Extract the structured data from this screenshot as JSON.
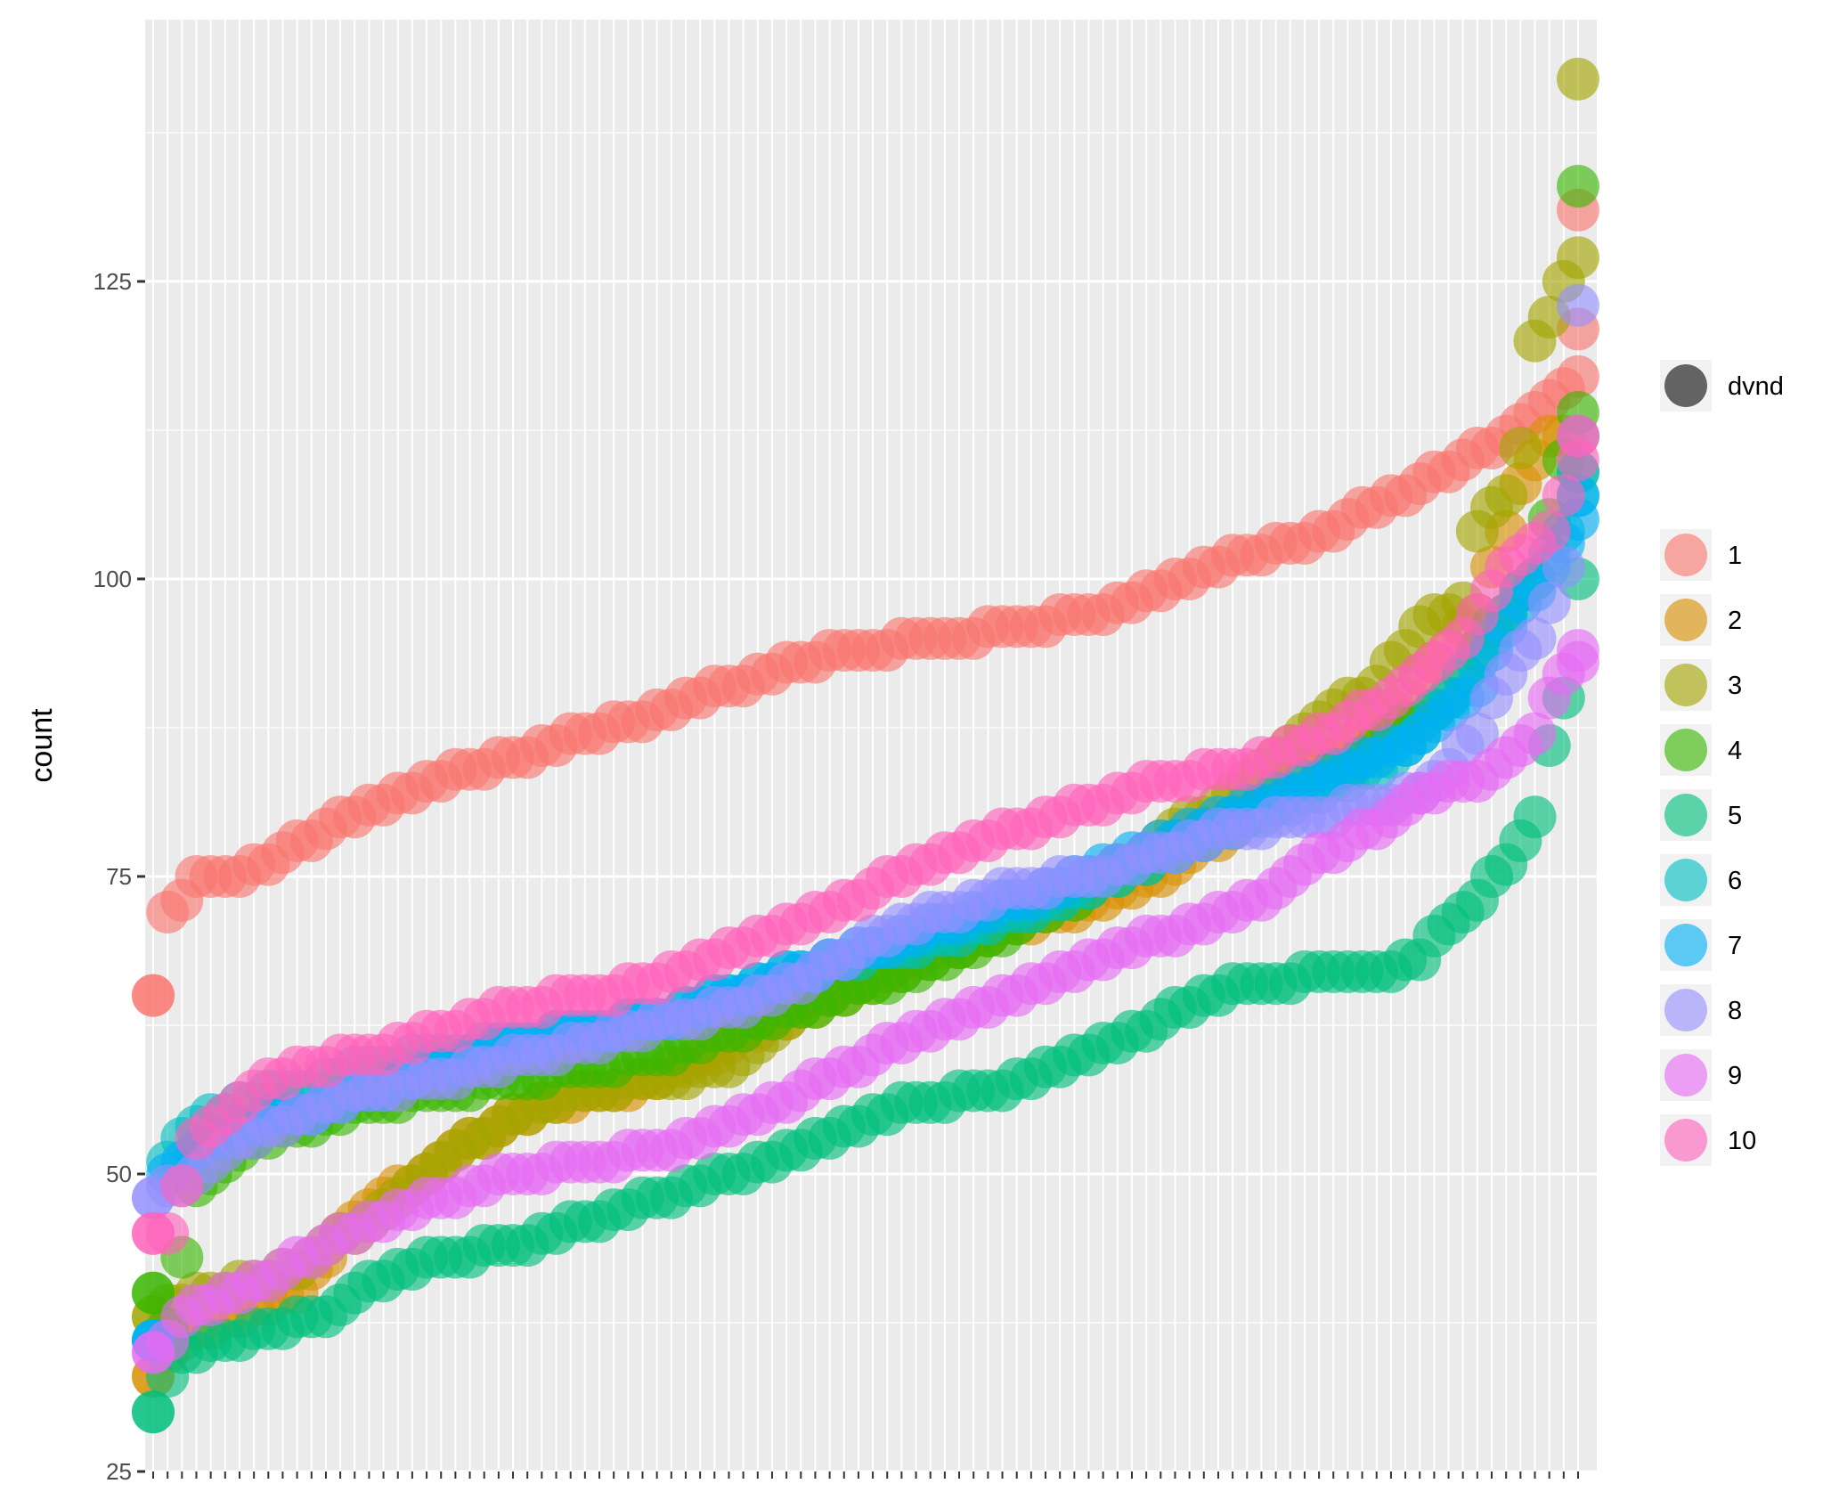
{
  "chart_data": {
    "type": "scatter",
    "title": "",
    "xlabel": "",
    "ylabel": "count",
    "ylim": [
      25,
      147
    ],
    "y_ticks": [
      25,
      50,
      75,
      100,
      125
    ],
    "x_count": 100,
    "x_tick_labels": "none",
    "point_alpha": 0.62,
    "grid": true,
    "background": "#EBEBEB",
    "legend_position": "right",
    "size_legend": {
      "label": "dvnd",
      "color": "#636363"
    },
    "series": [
      {
        "name": "1",
        "color": "#F8766D",
        "anchors": [
          [
            0,
            65
          ],
          [
            1,
            72
          ],
          [
            3,
            74.5
          ],
          [
            8,
            76
          ],
          [
            13,
            80
          ],
          [
            18,
            82
          ],
          [
            22,
            84
          ],
          [
            25,
            85
          ],
          [
            30,
            87
          ],
          [
            33,
            88
          ],
          [
            40,
            91
          ],
          [
            45,
            93
          ],
          [
            48,
            94
          ],
          [
            55,
            95
          ],
          [
            60,
            96
          ],
          [
            65,
            97
          ],
          [
            70,
            99
          ],
          [
            76,
            102
          ],
          [
            80,
            103
          ],
          [
            83,
            105
          ],
          [
            87,
            107
          ],
          [
            91,
            110
          ],
          [
            94,
            112
          ],
          [
            97,
            115
          ],
          [
            99,
            117
          ],
          [
            100,
            121
          ],
          [
            100,
            131
          ]
        ]
      },
      {
        "name": "2",
        "color": "#D89000",
        "anchors": [
          [
            0,
            33
          ],
          [
            2,
            36
          ],
          [
            10,
            40
          ],
          [
            14,
            46
          ],
          [
            20,
            51
          ],
          [
            25,
            55
          ],
          [
            35,
            58
          ],
          [
            45,
            64
          ],
          [
            55,
            69
          ],
          [
            63,
            72
          ],
          [
            70,
            75
          ],
          [
            76,
            80
          ],
          [
            80,
            84
          ],
          [
            83,
            86
          ],
          [
            86,
            89
          ],
          [
            89,
            93
          ],
          [
            92,
            97
          ],
          [
            94,
            104
          ],
          [
            95,
            108
          ],
          [
            96,
            110
          ],
          [
            97,
            112
          ]
        ]
      },
      {
        "name": "3",
        "color": "#A3A500",
        "anchors": [
          [
            0,
            38
          ],
          [
            3,
            40
          ],
          [
            8,
            41
          ],
          [
            15,
            46
          ],
          [
            20,
            51
          ],
          [
            25,
            55
          ],
          [
            30,
            57
          ],
          [
            40,
            59
          ],
          [
            45,
            64
          ],
          [
            52,
            67
          ],
          [
            60,
            71
          ],
          [
            65,
            74
          ],
          [
            70,
            78
          ],
          [
            74,
            81
          ],
          [
            78,
            85
          ],
          [
            81,
            88
          ],
          [
            85,
            91
          ],
          [
            88,
            96
          ],
          [
            91,
            98
          ],
          [
            92,
            104
          ],
          [
            94,
            107
          ],
          [
            95,
            111
          ],
          [
            96,
            120
          ],
          [
            97,
            122
          ],
          [
            99,
            127
          ],
          [
            100,
            142
          ]
        ]
      },
      {
        "name": "4",
        "color": "#39B600",
        "anchors": [
          [
            0,
            40
          ],
          [
            1,
            37
          ],
          [
            3,
            49
          ],
          [
            6,
            52
          ],
          [
            10,
            54
          ],
          [
            15,
            56
          ],
          [
            25,
            58
          ],
          [
            35,
            60
          ],
          [
            45,
            64
          ],
          [
            55,
            68
          ],
          [
            60,
            71
          ],
          [
            65,
            74
          ],
          [
            70,
            77
          ],
          [
            75,
            80
          ],
          [
            80,
            82
          ],
          [
            85,
            86
          ],
          [
            90,
            90
          ],
          [
            93,
            96
          ],
          [
            96,
            100
          ],
          [
            98,
            110
          ],
          [
            99,
            114
          ],
          [
            100,
            133
          ]
        ]
      },
      {
        "name": "5",
        "color": "#00BF7D",
        "anchors": [
          [
            0,
            30
          ],
          [
            2,
            35
          ],
          [
            8,
            37
          ],
          [
            12,
            38
          ],
          [
            15,
            41
          ],
          [
            20,
            43
          ],
          [
            25,
            44
          ],
          [
            35,
            48
          ],
          [
            45,
            52
          ],
          [
            50,
            55
          ],
          [
            58,
            57
          ],
          [
            65,
            60
          ],
          [
            70,
            63
          ],
          [
            75,
            66
          ],
          [
            85,
            67
          ],
          [
            88,
            68
          ],
          [
            90,
            71
          ],
          [
            92,
            73
          ],
          [
            94,
            76
          ],
          [
            96,
            80
          ],
          [
            97,
            86
          ],
          [
            98,
            90
          ],
          [
            99,
            100
          ],
          [
            100,
            109
          ]
        ]
      },
      {
        "name": "6",
        "color": "#00BFC4",
        "anchors": [
          [
            0,
            36
          ],
          [
            1,
            51
          ],
          [
            3,
            54
          ],
          [
            6,
            56
          ],
          [
            10,
            57
          ],
          [
            15,
            59
          ],
          [
            25,
            61
          ],
          [
            35,
            63
          ],
          [
            45,
            67
          ],
          [
            55,
            70
          ],
          [
            60,
            72
          ],
          [
            65,
            74
          ],
          [
            70,
            77
          ],
          [
            75,
            79
          ],
          [
            80,
            82
          ],
          [
            85,
            84
          ],
          [
            88,
            87
          ],
          [
            90,
            90
          ],
          [
            92,
            93
          ],
          [
            94,
            97
          ],
          [
            96,
            100
          ],
          [
            98,
            104
          ],
          [
            100,
            109
          ]
        ]
      },
      {
        "name": "7",
        "color": "#00B0F6",
        "anchors": [
          [
            0,
            36
          ],
          [
            1,
            50
          ],
          [
            3,
            52
          ],
          [
            6,
            54
          ],
          [
            10,
            55
          ],
          [
            15,
            57
          ],
          [
            25,
            61
          ],
          [
            35,
            63
          ],
          [
            45,
            67
          ],
          [
            55,
            71
          ],
          [
            60,
            73
          ],
          [
            65,
            75
          ],
          [
            70,
            78
          ],
          [
            75,
            80
          ],
          [
            80,
            83
          ],
          [
            85,
            85
          ],
          [
            88,
            87
          ],
          [
            90,
            89
          ],
          [
            92,
            91
          ],
          [
            94,
            96
          ],
          [
            96,
            99
          ],
          [
            98,
            103
          ],
          [
            100,
            107
          ]
        ]
      },
      {
        "name": "8",
        "color": "#9590FF",
        "anchors": [
          [
            0,
            48
          ],
          [
            2,
            49
          ],
          [
            5,
            52
          ],
          [
            10,
            55
          ],
          [
            15,
            57
          ],
          [
            20,
            58
          ],
          [
            30,
            61
          ],
          [
            40,
            64
          ],
          [
            45,
            66
          ],
          [
            50,
            70
          ],
          [
            55,
            72
          ],
          [
            60,
            74
          ],
          [
            65,
            75
          ],
          [
            70,
            77
          ],
          [
            75,
            79
          ],
          [
            80,
            80
          ],
          [
            85,
            81
          ],
          [
            88,
            82
          ],
          [
            90,
            84
          ],
          [
            92,
            87
          ],
          [
            94,
            92
          ],
          [
            96,
            95
          ],
          [
            98,
            101
          ],
          [
            100,
            123
          ]
        ]
      },
      {
        "name": "9",
        "color": "#E76BF3",
        "anchors": [
          [
            0,
            35
          ],
          [
            3,
            39
          ],
          [
            8,
            41
          ],
          [
            12,
            44
          ],
          [
            15,
            46
          ],
          [
            20,
            48
          ],
          [
            25,
            50
          ],
          [
            35,
            52
          ],
          [
            40,
            54
          ],
          [
            45,
            57
          ],
          [
            50,
            60
          ],
          [
            55,
            63
          ],
          [
            60,
            65
          ],
          [
            65,
            68
          ],
          [
            70,
            70
          ],
          [
            75,
            72
          ],
          [
            78,
            74
          ],
          [
            80,
            76
          ],
          [
            83,
            78
          ],
          [
            86,
            80
          ],
          [
            88,
            82
          ],
          [
            92,
            83
          ],
          [
            94,
            85
          ],
          [
            96,
            87
          ],
          [
            98,
            92
          ],
          [
            100,
            94
          ]
        ]
      },
      {
        "name": "10",
        "color": "#FF62BC",
        "anchors": [
          [
            0,
            45
          ],
          [
            1,
            45
          ],
          [
            3,
            53
          ],
          [
            6,
            56
          ],
          [
            10,
            59
          ],
          [
            15,
            60
          ],
          [
            20,
            62
          ],
          [
            25,
            64
          ],
          [
            30,
            65
          ],
          [
            35,
            66
          ],
          [
            40,
            69
          ],
          [
            45,
            71
          ],
          [
            50,
            74
          ],
          [
            55,
            77
          ],
          [
            60,
            79
          ],
          [
            65,
            81
          ],
          [
            70,
            83
          ],
          [
            75,
            84
          ],
          [
            80,
            86
          ],
          [
            83,
            88
          ],
          [
            86,
            90
          ],
          [
            88,
            92
          ],
          [
            91,
            95
          ],
          [
            93,
            99
          ],
          [
            95,
            102
          ],
          [
            97,
            104
          ],
          [
            99,
            110
          ],
          [
            100,
            112
          ]
        ]
      }
    ]
  }
}
